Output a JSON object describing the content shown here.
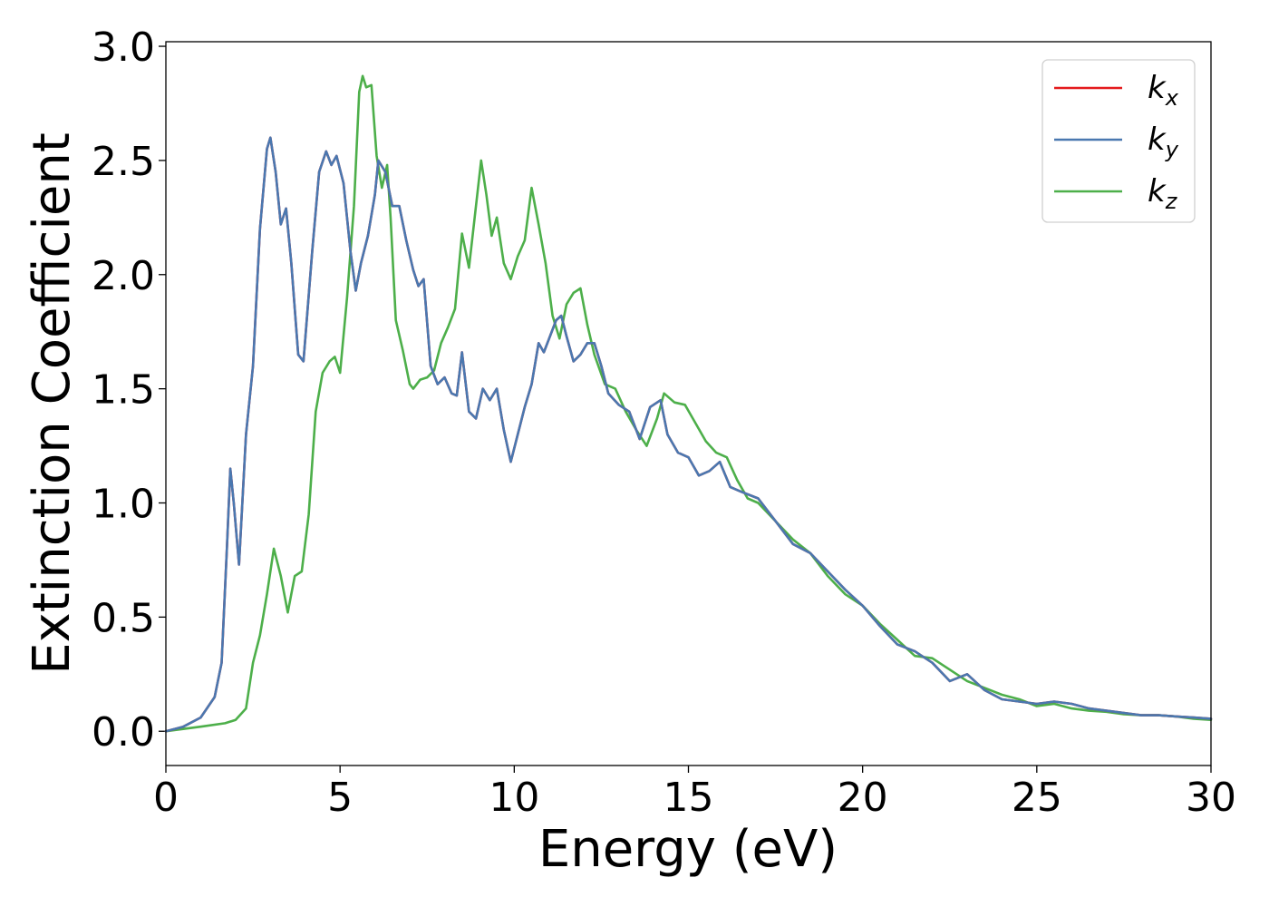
{
  "chart_data": {
    "type": "line",
    "xlabel": "Energy (eV)",
    "ylabel": "Extinction Coefficient",
    "xlim": [
      0,
      30
    ],
    "ylim": [
      -0.15,
      3.02
    ],
    "xticks": [
      0,
      5,
      10,
      15,
      20,
      25,
      30
    ],
    "yticks": [
      0.0,
      0.5,
      1.0,
      1.5,
      2.0,
      2.5,
      3.0
    ],
    "xtick_labels": [
      "0",
      "5",
      "10",
      "15",
      "20",
      "25",
      "30"
    ],
    "ytick_labels": [
      "0.0",
      "0.5",
      "1.0",
      "1.5",
      "2.0",
      "2.5",
      "3.0"
    ],
    "grid": false,
    "legend_position": "top-right",
    "series": [
      {
        "name": "k_x",
        "legend_main": "k",
        "legend_sub": "x",
        "color": "#e41a1c",
        "points": [
          [
            0,
            0
          ],
          [
            0.5,
            0.02
          ],
          [
            1.0,
            0.06
          ],
          [
            1.4,
            0.15
          ],
          [
            1.6,
            0.3
          ],
          [
            1.75,
            0.8
          ],
          [
            1.85,
            1.15
          ],
          [
            1.95,
            1.0
          ],
          [
            2.1,
            0.73
          ],
          [
            2.3,
            1.3
          ],
          [
            2.5,
            1.6
          ],
          [
            2.7,
            2.2
          ],
          [
            2.9,
            2.55
          ],
          [
            3.0,
            2.6
          ],
          [
            3.15,
            2.45
          ],
          [
            3.3,
            2.22
          ],
          [
            3.45,
            2.29
          ],
          [
            3.6,
            2.05
          ],
          [
            3.8,
            1.65
          ],
          [
            3.95,
            1.62
          ],
          [
            4.2,
            2.1
          ],
          [
            4.4,
            2.45
          ],
          [
            4.6,
            2.54
          ],
          [
            4.75,
            2.48
          ],
          [
            4.9,
            2.52
          ],
          [
            5.1,
            2.4
          ],
          [
            5.3,
            2.1
          ],
          [
            5.45,
            1.93
          ],
          [
            5.6,
            2.05
          ],
          [
            5.8,
            2.17
          ],
          [
            6.0,
            2.35
          ],
          [
            6.1,
            2.5
          ],
          [
            6.3,
            2.45
          ],
          [
            6.5,
            2.3
          ],
          [
            6.7,
            2.3
          ],
          [
            6.9,
            2.15
          ],
          [
            7.1,
            2.02
          ],
          [
            7.25,
            1.95
          ],
          [
            7.4,
            1.98
          ],
          [
            7.6,
            1.6
          ],
          [
            7.8,
            1.52
          ],
          [
            8.0,
            1.55
          ],
          [
            8.2,
            1.48
          ],
          [
            8.35,
            1.47
          ],
          [
            8.5,
            1.66
          ],
          [
            8.7,
            1.4
          ],
          [
            8.9,
            1.37
          ],
          [
            9.1,
            1.5
          ],
          [
            9.3,
            1.45
          ],
          [
            9.5,
            1.5
          ],
          [
            9.7,
            1.32
          ],
          [
            9.9,
            1.18
          ],
          [
            10.1,
            1.3
          ],
          [
            10.3,
            1.42
          ],
          [
            10.5,
            1.52
          ],
          [
            10.7,
            1.7
          ],
          [
            10.85,
            1.66
          ],
          [
            11.0,
            1.72
          ],
          [
            11.2,
            1.8
          ],
          [
            11.35,
            1.82
          ],
          [
            11.5,
            1.73
          ],
          [
            11.7,
            1.62
          ],
          [
            11.9,
            1.65
          ],
          [
            12.1,
            1.7
          ],
          [
            12.3,
            1.7
          ],
          [
            12.5,
            1.6
          ],
          [
            12.7,
            1.48
          ],
          [
            13.0,
            1.43
          ],
          [
            13.3,
            1.4
          ],
          [
            13.6,
            1.28
          ],
          [
            13.9,
            1.42
          ],
          [
            14.2,
            1.45
          ],
          [
            14.4,
            1.3
          ],
          [
            14.7,
            1.22
          ],
          [
            15.0,
            1.2
          ],
          [
            15.3,
            1.12
          ],
          [
            15.6,
            1.14
          ],
          [
            15.9,
            1.18
          ],
          [
            16.2,
            1.07
          ],
          [
            16.5,
            1.05
          ],
          [
            17.0,
            1.02
          ],
          [
            17.5,
            0.92
          ],
          [
            18.0,
            0.82
          ],
          [
            18.5,
            0.78
          ],
          [
            19.0,
            0.7
          ],
          [
            19.5,
            0.62
          ],
          [
            20.0,
            0.55
          ],
          [
            20.5,
            0.46
          ],
          [
            21.0,
            0.38
          ],
          [
            21.5,
            0.35
          ],
          [
            22.0,
            0.3
          ],
          [
            22.5,
            0.22
          ],
          [
            23.0,
            0.25
          ],
          [
            23.5,
            0.18
          ],
          [
            24.0,
            0.14
          ],
          [
            24.5,
            0.13
          ],
          [
            25.0,
            0.12
          ],
          [
            25.5,
            0.13
          ],
          [
            26.0,
            0.12
          ],
          [
            26.5,
            0.1
          ],
          [
            27.0,
            0.09
          ],
          [
            27.5,
            0.08
          ],
          [
            28.0,
            0.07
          ],
          [
            28.5,
            0.07
          ],
          [
            29.0,
            0.065
          ],
          [
            29.5,
            0.06
          ],
          [
            30.0,
            0.055
          ]
        ]
      },
      {
        "name": "k_y",
        "legend_main": "k",
        "legend_sub": "y",
        "color": "#4a78b0",
        "points": [
          [
            0,
            0
          ],
          [
            0.5,
            0.02
          ],
          [
            1.0,
            0.06
          ],
          [
            1.4,
            0.15
          ],
          [
            1.6,
            0.3
          ],
          [
            1.75,
            0.8
          ],
          [
            1.85,
            1.15
          ],
          [
            1.95,
            1.0
          ],
          [
            2.1,
            0.73
          ],
          [
            2.3,
            1.3
          ],
          [
            2.5,
            1.6
          ],
          [
            2.7,
            2.2
          ],
          [
            2.9,
            2.55
          ],
          [
            3.0,
            2.6
          ],
          [
            3.15,
            2.45
          ],
          [
            3.3,
            2.22
          ],
          [
            3.45,
            2.29
          ],
          [
            3.6,
            2.05
          ],
          [
            3.8,
            1.65
          ],
          [
            3.95,
            1.62
          ],
          [
            4.2,
            2.1
          ],
          [
            4.4,
            2.45
          ],
          [
            4.6,
            2.54
          ],
          [
            4.75,
            2.48
          ],
          [
            4.9,
            2.52
          ],
          [
            5.1,
            2.4
          ],
          [
            5.3,
            2.1
          ],
          [
            5.45,
            1.93
          ],
          [
            5.6,
            2.05
          ],
          [
            5.8,
            2.17
          ],
          [
            6.0,
            2.35
          ],
          [
            6.1,
            2.5
          ],
          [
            6.3,
            2.45
          ],
          [
            6.5,
            2.3
          ],
          [
            6.7,
            2.3
          ],
          [
            6.9,
            2.15
          ],
          [
            7.1,
            2.02
          ],
          [
            7.25,
            1.95
          ],
          [
            7.4,
            1.98
          ],
          [
            7.6,
            1.6
          ],
          [
            7.8,
            1.52
          ],
          [
            8.0,
            1.55
          ],
          [
            8.2,
            1.48
          ],
          [
            8.35,
            1.47
          ],
          [
            8.5,
            1.66
          ],
          [
            8.7,
            1.4
          ],
          [
            8.9,
            1.37
          ],
          [
            9.1,
            1.5
          ],
          [
            9.3,
            1.45
          ],
          [
            9.5,
            1.5
          ],
          [
            9.7,
            1.32
          ],
          [
            9.9,
            1.18
          ],
          [
            10.1,
            1.3
          ],
          [
            10.3,
            1.42
          ],
          [
            10.5,
            1.52
          ],
          [
            10.7,
            1.7
          ],
          [
            10.85,
            1.66
          ],
          [
            11.0,
            1.72
          ],
          [
            11.2,
            1.8
          ],
          [
            11.35,
            1.82
          ],
          [
            11.5,
            1.73
          ],
          [
            11.7,
            1.62
          ],
          [
            11.9,
            1.65
          ],
          [
            12.1,
            1.7
          ],
          [
            12.3,
            1.7
          ],
          [
            12.5,
            1.6
          ],
          [
            12.7,
            1.48
          ],
          [
            13.0,
            1.43
          ],
          [
            13.3,
            1.4
          ],
          [
            13.6,
            1.28
          ],
          [
            13.9,
            1.42
          ],
          [
            14.2,
            1.45
          ],
          [
            14.4,
            1.3
          ],
          [
            14.7,
            1.22
          ],
          [
            15.0,
            1.2
          ],
          [
            15.3,
            1.12
          ],
          [
            15.6,
            1.14
          ],
          [
            15.9,
            1.18
          ],
          [
            16.2,
            1.07
          ],
          [
            16.5,
            1.05
          ],
          [
            17.0,
            1.02
          ],
          [
            17.5,
            0.92
          ],
          [
            18.0,
            0.82
          ],
          [
            18.5,
            0.78
          ],
          [
            19.0,
            0.7
          ],
          [
            19.5,
            0.62
          ],
          [
            20.0,
            0.55
          ],
          [
            20.5,
            0.46
          ],
          [
            21.0,
            0.38
          ],
          [
            21.5,
            0.35
          ],
          [
            22.0,
            0.3
          ],
          [
            22.5,
            0.22
          ],
          [
            23.0,
            0.25
          ],
          [
            23.5,
            0.18
          ],
          [
            24.0,
            0.14
          ],
          [
            24.5,
            0.13
          ],
          [
            25.0,
            0.12
          ],
          [
            25.5,
            0.13
          ],
          [
            26.0,
            0.12
          ],
          [
            26.5,
            0.1
          ],
          [
            27.0,
            0.09
          ],
          [
            27.5,
            0.08
          ],
          [
            28.0,
            0.07
          ],
          [
            28.5,
            0.07
          ],
          [
            29.0,
            0.065
          ],
          [
            29.5,
            0.06
          ],
          [
            30.0,
            0.055
          ]
        ]
      },
      {
        "name": "k_z",
        "legend_main": "k",
        "legend_sub": "z",
        "color": "#4daf4a",
        "points": [
          [
            0,
            0
          ],
          [
            1.0,
            0.02
          ],
          [
            1.7,
            0.035
          ],
          [
            2.0,
            0.05
          ],
          [
            2.3,
            0.1
          ],
          [
            2.5,
            0.3
          ],
          [
            2.7,
            0.42
          ],
          [
            2.9,
            0.6
          ],
          [
            3.1,
            0.8
          ],
          [
            3.3,
            0.68
          ],
          [
            3.5,
            0.52
          ],
          [
            3.7,
            0.68
          ],
          [
            3.9,
            0.7
          ],
          [
            4.1,
            0.95
          ],
          [
            4.3,
            1.4
          ],
          [
            4.5,
            1.57
          ],
          [
            4.7,
            1.62
          ],
          [
            4.85,
            1.64
          ],
          [
            5.0,
            1.57
          ],
          [
            5.2,
            1.9
          ],
          [
            5.4,
            2.3
          ],
          [
            5.55,
            2.8
          ],
          [
            5.65,
            2.87
          ],
          [
            5.75,
            2.82
          ],
          [
            5.9,
            2.83
          ],
          [
            6.05,
            2.52
          ],
          [
            6.2,
            2.38
          ],
          [
            6.35,
            2.48
          ],
          [
            6.45,
            2.25
          ],
          [
            6.6,
            1.8
          ],
          [
            6.8,
            1.67
          ],
          [
            7.0,
            1.52
          ],
          [
            7.1,
            1.5
          ],
          [
            7.3,
            1.54
          ],
          [
            7.5,
            1.55
          ],
          [
            7.7,
            1.58
          ],
          [
            7.9,
            1.7
          ],
          [
            8.1,
            1.77
          ],
          [
            8.3,
            1.85
          ],
          [
            8.5,
            2.18
          ],
          [
            8.7,
            2.03
          ],
          [
            8.9,
            2.3
          ],
          [
            9.05,
            2.5
          ],
          [
            9.2,
            2.35
          ],
          [
            9.35,
            2.17
          ],
          [
            9.5,
            2.25
          ],
          [
            9.7,
            2.05
          ],
          [
            9.9,
            1.98
          ],
          [
            10.1,
            2.08
          ],
          [
            10.3,
            2.15
          ],
          [
            10.5,
            2.38
          ],
          [
            10.7,
            2.22
          ],
          [
            10.9,
            2.05
          ],
          [
            11.1,
            1.82
          ],
          [
            11.3,
            1.72
          ],
          [
            11.5,
            1.87
          ],
          [
            11.7,
            1.92
          ],
          [
            11.9,
            1.94
          ],
          [
            12.1,
            1.78
          ],
          [
            12.3,
            1.65
          ],
          [
            12.6,
            1.52
          ],
          [
            12.9,
            1.5
          ],
          [
            13.2,
            1.4
          ],
          [
            13.5,
            1.32
          ],
          [
            13.8,
            1.25
          ],
          [
            14.1,
            1.37
          ],
          [
            14.3,
            1.48
          ],
          [
            14.6,
            1.44
          ],
          [
            14.9,
            1.43
          ],
          [
            15.2,
            1.35
          ],
          [
            15.5,
            1.27
          ],
          [
            15.8,
            1.22
          ],
          [
            16.1,
            1.2
          ],
          [
            16.4,
            1.1
          ],
          [
            16.7,
            1.02
          ],
          [
            17.0,
            1.0
          ],
          [
            17.5,
            0.92
          ],
          [
            18.0,
            0.84
          ],
          [
            18.5,
            0.78
          ],
          [
            19.0,
            0.68
          ],
          [
            19.5,
            0.6
          ],
          [
            20.0,
            0.55
          ],
          [
            20.5,
            0.47
          ],
          [
            21.0,
            0.4
          ],
          [
            21.5,
            0.33
          ],
          [
            22.0,
            0.32
          ],
          [
            22.5,
            0.27
          ],
          [
            23.0,
            0.22
          ],
          [
            23.5,
            0.19
          ],
          [
            24.0,
            0.16
          ],
          [
            24.5,
            0.14
          ],
          [
            25.0,
            0.11
          ],
          [
            25.5,
            0.12
          ],
          [
            26.0,
            0.1
          ],
          [
            26.5,
            0.09
          ],
          [
            27.0,
            0.085
          ],
          [
            27.5,
            0.075
          ],
          [
            28.0,
            0.07
          ],
          [
            28.5,
            0.07
          ],
          [
            29.0,
            0.065
          ],
          [
            29.5,
            0.055
          ],
          [
            30.0,
            0.05
          ]
        ]
      }
    ]
  }
}
